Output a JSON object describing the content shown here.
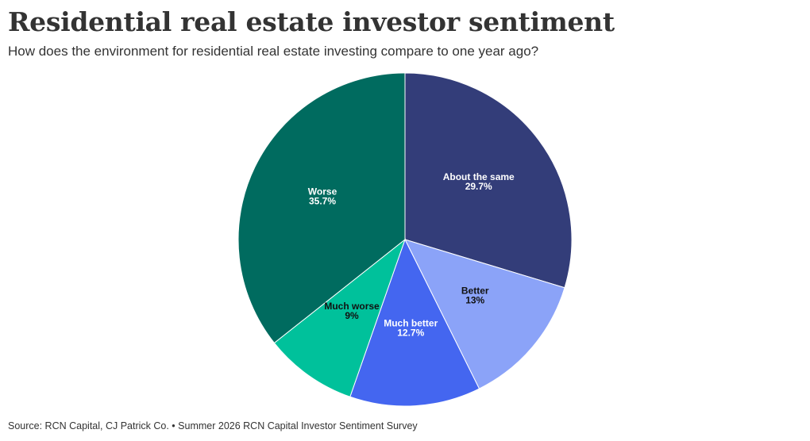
{
  "title": "Residential real estate investor sentiment",
  "subtitle": "How does the environment for residential real estate investing compare to one year ago?",
  "source": "Source: RCN Capital, CJ Patrick Co. • Summer 2026 RCN Capital Investor Sentiment Survey",
  "chart_data": {
    "type": "pie",
    "title": "Residential real estate investor sentiment",
    "subtitle": "How does the environment for residential real estate investing compare to one year ago?",
    "start": "12 o'clock",
    "direction": "clockwise",
    "slices": [
      {
        "name": "About the same",
        "value": 29.7,
        "label": "29.7%",
        "color": "#333d79",
        "label_color": "#ffffff"
      },
      {
        "name": "Better",
        "value": 13,
        "label": "13%",
        "color": "#8ba3f8",
        "label_color": "#111111"
      },
      {
        "name": "Much better",
        "value": 12.7,
        "label": "12.7%",
        "color": "#4466f0",
        "label_color": "#ffffff"
      },
      {
        "name": "Much worse",
        "value": 9,
        "label": "9%",
        "color": "#00c19b",
        "label_color": "#111111"
      },
      {
        "name": "Worse",
        "value": 35.7,
        "label": "35.7%",
        "color": "#006b5f",
        "label_color": "#ffffff"
      }
    ]
  }
}
